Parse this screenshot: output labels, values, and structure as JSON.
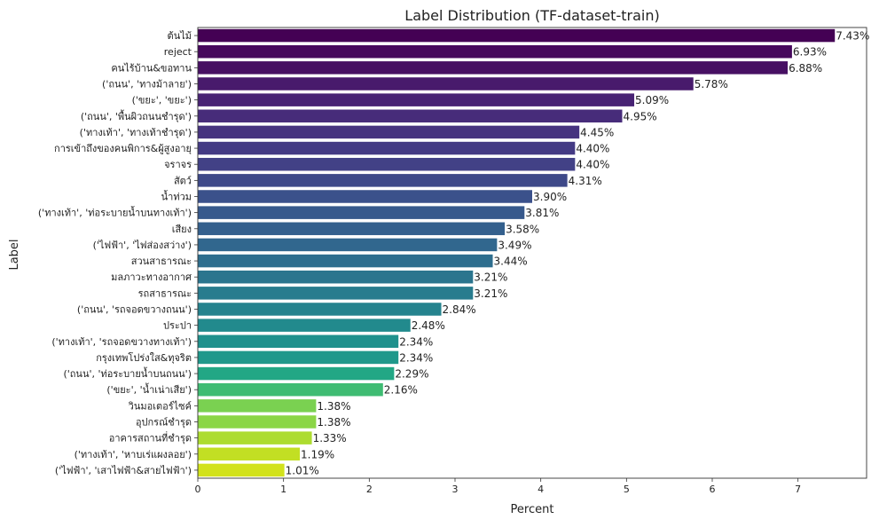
{
  "chart_data": {
    "type": "bar",
    "orientation": "horizontal",
    "title": "Label Distribution (TF-dataset-train)",
    "xlabel": "Percent",
    "ylabel": "Label",
    "xlim": [
      0,
      7.8
    ],
    "xticks": [
      0,
      1,
      2,
      3,
      4,
      5,
      6,
      7
    ],
    "grid": false,
    "colormap": "viridis",
    "categories": [
      "ต้นไม้",
      "reject",
      "คนไร้บ้าน&ขอทาน",
      "('ถนน', 'ทางม้าลาย')",
      "('ขยะ', 'ขยะ')",
      "('ถนน', 'พื้นผิวถนนชำรุด')",
      "('ทางเท้า', 'ทางเท้าชำรุด')",
      "การเข้าถึงของคนพิการ&ผู้สูงอายุ",
      "จราจร",
      "สัตว์",
      "น้ำท่วม",
      "('ทางเท้า', 'ท่อระบายน้ำบนทางเท้า')",
      "เสียง",
      "('ไฟฟ้า', 'ไฟส่องสว่าง')",
      "สวนสาธารณะ",
      "มลภาวะทางอากาศ",
      "รถสาธารณะ",
      "('ถนน', 'รถจอดขวางถนน')",
      "ประปา",
      "('ทางเท้า', 'รถจอดขวางทางเท้า')",
      "กรุงเทพโปร่งใส&ทุจริต",
      "('ถนน', 'ท่อระบายน้ำบนถนน')",
      "('ขยะ', 'น้ำเน่าเสีย')",
      "วินมอเตอร์ไซค์",
      "อุปกรณ์ชำรุด",
      "อาคารสถานที่ชำรุด",
      "('ทางเท้า', 'หาบเร่แผงลอย')",
      "('ไฟฟ้า', 'เสาไฟฟ้า&สายไฟฟ้า')"
    ],
    "values": [
      7.43,
      6.93,
      6.88,
      5.78,
      5.09,
      4.95,
      4.45,
      4.4,
      4.4,
      4.31,
      3.9,
      3.81,
      3.58,
      3.49,
      3.44,
      3.21,
      3.21,
      2.84,
      2.48,
      2.34,
      2.34,
      2.29,
      2.16,
      1.38,
      1.38,
      1.33,
      1.19,
      1.01
    ],
    "value_labels": [
      "7.43%",
      "6.93%",
      "6.88%",
      "5.78%",
      "5.09%",
      "4.95%",
      "4.45%",
      "4.40%",
      "4.40%",
      "4.31%",
      "3.90%",
      "3.81%",
      "3.58%",
      "3.49%",
      "3.44%",
      "3.21%",
      "3.21%",
      "2.84%",
      "2.48%",
      "2.34%",
      "2.34%",
      "2.29%",
      "2.16%",
      "1.38%",
      "1.38%",
      "1.33%",
      "1.19%",
      "1.01%"
    ],
    "colors": [
      "#440154",
      "#46085c",
      "#471063",
      "#481a6c",
      "#482374",
      "#472c7a",
      "#46337f",
      "#443b84",
      "#424186",
      "#3e4989",
      "#3b518b",
      "#37598c",
      "#34608d",
      "#31678e",
      "#2e6e8e",
      "#2b758e",
      "#287c8e",
      "#25838e",
      "#228a8d",
      "#1f918d",
      "#1f988b",
      "#22a785",
      "#3fbc73",
      "#7ad151",
      "#8bd646",
      "#addc30",
      "#c2df23",
      "#d2e21b"
    ]
  }
}
